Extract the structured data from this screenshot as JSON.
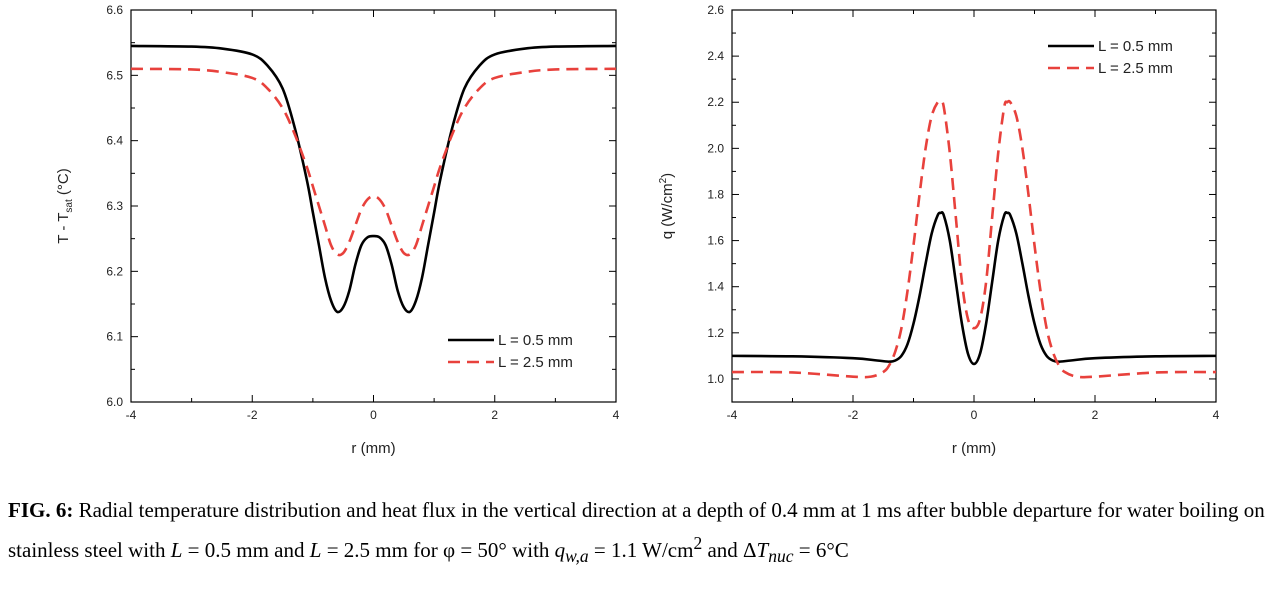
{
  "chart_data": [
    {
      "type": "line",
      "title": "",
      "xlabel": "r (mm)",
      "ylabel": "T - T",
      "ylabel_subscript": "sat",
      "ylabel_unit": " (°C)",
      "xlim": [
        -4,
        4
      ],
      "ylim": [
        6.0,
        6.6
      ],
      "xticks": [
        -4,
        -2,
        0,
        2,
        4
      ],
      "yticks": [
        6.0,
        6.1,
        6.2,
        6.3,
        6.4,
        6.5,
        6.6
      ],
      "ytick_labels": [
        "6.0",
        "6.1",
        "6.2",
        "6.3",
        "6.4",
        "6.5",
        "6.6"
      ],
      "grid": false,
      "legend_position": "bottom-right",
      "series": [
        {
          "name": "L = 0.5 mm",
          "style": "solid",
          "color": "#000000",
          "x": [
            -4,
            -3.0,
            -2.5,
            -2.0,
            -1.75,
            -1.5,
            -1.3,
            -1.1,
            -1.0,
            -0.9,
            -0.8,
            -0.7,
            -0.6,
            -0.5,
            -0.4,
            -0.3,
            -0.2,
            -0.1,
            0,
            0.1,
            0.2,
            0.3,
            0.4,
            0.5,
            0.6,
            0.7,
            0.8,
            0.9,
            1.0,
            1.1,
            1.3,
            1.5,
            1.75,
            2.0,
            2.5,
            3.0,
            4
          ],
          "y": [
            6.545,
            6.544,
            6.541,
            6.532,
            6.515,
            6.48,
            6.42,
            6.34,
            6.29,
            6.24,
            6.19,
            6.155,
            6.138,
            6.145,
            6.17,
            6.21,
            6.24,
            6.252,
            6.254,
            6.252,
            6.24,
            6.21,
            6.17,
            6.145,
            6.138,
            6.155,
            6.19,
            6.24,
            6.29,
            6.34,
            6.42,
            6.48,
            6.515,
            6.532,
            6.541,
            6.544,
            6.545
          ]
        },
        {
          "name": "L = 2.5 mm",
          "style": "dashed",
          "color": "#e8413c",
          "x": [
            -4,
            -3.0,
            -2.5,
            -2.0,
            -1.75,
            -1.5,
            -1.3,
            -1.1,
            -1.0,
            -0.9,
            -0.8,
            -0.7,
            -0.6,
            -0.5,
            -0.4,
            -0.3,
            -0.2,
            -0.1,
            0,
            0.1,
            0.2,
            0.3,
            0.4,
            0.5,
            0.6,
            0.7,
            0.8,
            0.9,
            1.0,
            1.1,
            1.3,
            1.5,
            1.75,
            2.0,
            2.5,
            3.0,
            4
          ],
          "y": [
            6.51,
            6.509,
            6.505,
            6.496,
            6.48,
            6.45,
            6.41,
            6.36,
            6.33,
            6.3,
            6.27,
            6.24,
            6.226,
            6.228,
            6.245,
            6.27,
            6.295,
            6.31,
            6.315,
            6.31,
            6.295,
            6.27,
            6.245,
            6.228,
            6.226,
            6.24,
            6.27,
            6.3,
            6.33,
            6.36,
            6.41,
            6.45,
            6.48,
            6.496,
            6.505,
            6.509,
            6.51
          ]
        }
      ]
    },
    {
      "type": "line",
      "title": "",
      "xlabel": "r (mm)",
      "ylabel": "q (W/cm",
      "ylabel_superscript": "2",
      "ylabel_unit": ")",
      "xlim": [
        -4,
        4
      ],
      "ylim": [
        0.9,
        2.6
      ],
      "xticks": [
        -4,
        -2,
        0,
        2,
        4
      ],
      "yticks": [
        1.0,
        1.2,
        1.4,
        1.6,
        1.8,
        2.0,
        2.2,
        2.4,
        2.6
      ],
      "ytick_labels": [
        "1.0",
        "1.2",
        "1.4",
        "1.6",
        "1.8",
        "2.0",
        "2.2",
        "2.4",
        "2.6"
      ],
      "grid": false,
      "legend_position": "top-right",
      "series": [
        {
          "name": "L = 0.5 mm",
          "style": "solid",
          "color": "#000000",
          "x": [
            -4,
            -3.0,
            -2.0,
            -1.6,
            -1.4,
            -1.3,
            -1.2,
            -1.1,
            -1.0,
            -0.9,
            -0.8,
            -0.7,
            -0.6,
            -0.55,
            -0.5,
            -0.4,
            -0.3,
            -0.2,
            -0.1,
            0,
            0.1,
            0.2,
            0.3,
            0.4,
            0.5,
            0.55,
            0.6,
            0.7,
            0.8,
            0.9,
            1.0,
            1.1,
            1.2,
            1.3,
            1.4,
            1.6,
            2.0,
            3.0,
            4
          ],
          "y": [
            1.1,
            1.098,
            1.09,
            1.08,
            1.075,
            1.08,
            1.1,
            1.15,
            1.24,
            1.36,
            1.5,
            1.63,
            1.71,
            1.72,
            1.71,
            1.6,
            1.42,
            1.24,
            1.11,
            1.065,
            1.11,
            1.24,
            1.42,
            1.6,
            1.71,
            1.72,
            1.71,
            1.63,
            1.5,
            1.36,
            1.24,
            1.15,
            1.1,
            1.08,
            1.075,
            1.08,
            1.09,
            1.098,
            1.1
          ]
        },
        {
          "name": "L = 2.5 mm",
          "style": "dashed",
          "color": "#e8413c",
          "x": [
            -4,
            -3.0,
            -2.0,
            -1.7,
            -1.5,
            -1.4,
            -1.3,
            -1.2,
            -1.1,
            -1.0,
            -0.9,
            -0.8,
            -0.7,
            -0.6,
            -0.55,
            -0.5,
            -0.4,
            -0.3,
            -0.2,
            -0.1,
            0,
            0.1,
            0.2,
            0.3,
            0.4,
            0.5,
            0.55,
            0.6,
            0.7,
            0.8,
            0.9,
            1.0,
            1.1,
            1.2,
            1.3,
            1.4,
            1.5,
            1.7,
            2.0,
            3.0,
            4
          ],
          "y": [
            1.03,
            1.028,
            1.01,
            1.01,
            1.03,
            1.06,
            1.12,
            1.22,
            1.38,
            1.58,
            1.8,
            2.0,
            2.14,
            2.2,
            2.2,
            2.18,
            1.98,
            1.7,
            1.42,
            1.26,
            1.22,
            1.26,
            1.42,
            1.7,
            1.98,
            2.18,
            2.2,
            2.2,
            2.14,
            2.0,
            1.8,
            1.58,
            1.38,
            1.22,
            1.12,
            1.06,
            1.03,
            1.01,
            1.01,
            1.028,
            1.03
          ]
        }
      ]
    }
  ],
  "caption": {
    "label": "FIG. 6:",
    "text1": " Radial temperature distribution and heat flux in the vertical direction at a depth of 0.4 mm at 1 ms after bubble departure for water boiling on stainless steel with ",
    "L_symbol": "L",
    "text2": " = 0.5 mm and ",
    "text3": " = 2.5 mm for φ = 50° with ",
    "q_symbol": "q",
    "q_subscript": "w,a",
    "text4": " = 1.1 W/cm",
    "text4_sup": "2",
    "text5": " and Δ",
    "T_symbol": "T",
    "T_subscript": "nuc",
    "text6": " = 6°C"
  }
}
